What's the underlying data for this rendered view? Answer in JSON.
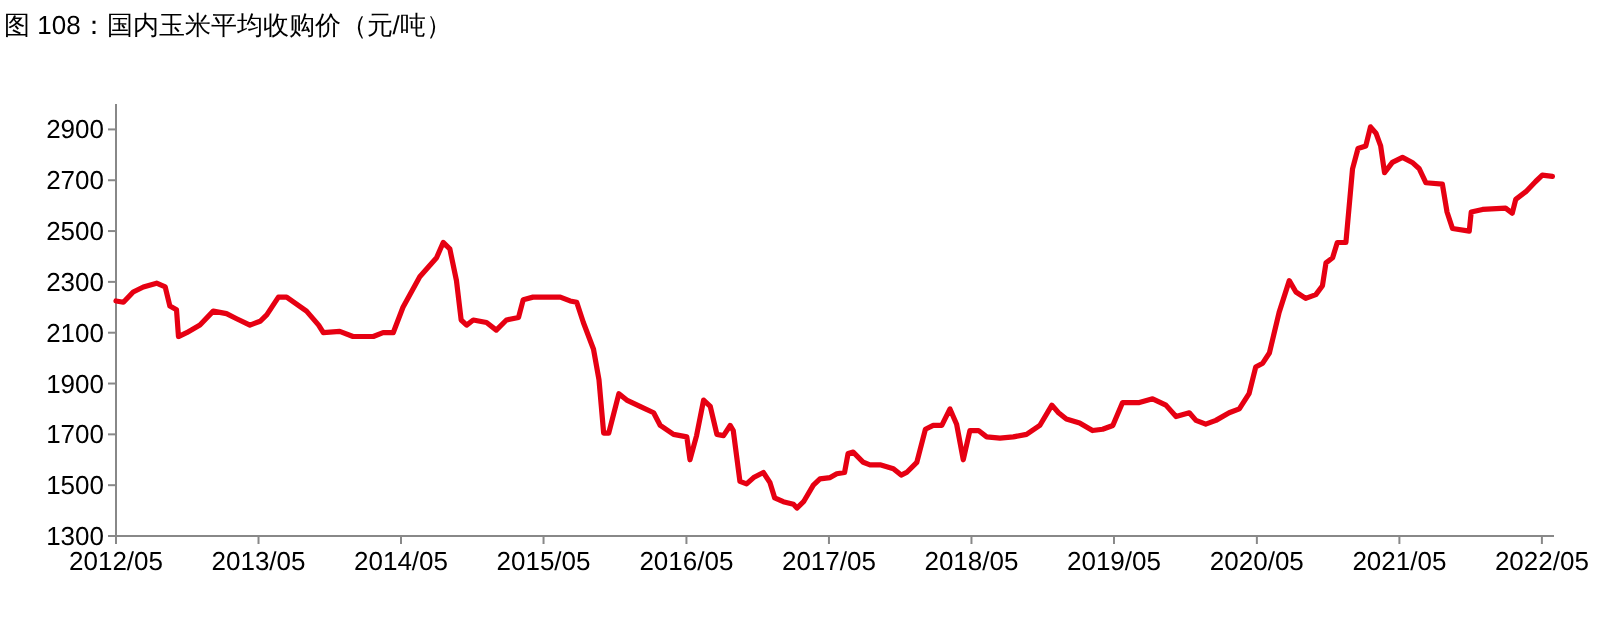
{
  "chart_data": {
    "type": "line",
    "title": "图 108：国内玉米平均收购价（元/吨）",
    "xlim": [
      "2012-05-01",
      "2022-06-01"
    ],
    "ylim": [
      1300,
      3000
    ],
    "xticks": [
      {
        "value": "2012-05-01",
        "label": "2012/05"
      },
      {
        "value": "2013-05-01",
        "label": "2013/05"
      },
      {
        "value": "2014-05-01",
        "label": "2014/05"
      },
      {
        "value": "2015-05-01",
        "label": "2015/05"
      },
      {
        "value": "2016-05-01",
        "label": "2016/05"
      },
      {
        "value": "2017-05-01",
        "label": "2017/05"
      },
      {
        "value": "2018-05-01",
        "label": "2018/05"
      },
      {
        "value": "2019-05-01",
        "label": "2019/05"
      },
      {
        "value": "2020-05-01",
        "label": "2020/05"
      },
      {
        "value": "2021-05-01",
        "label": "2021/05"
      },
      {
        "value": "2022-05-01",
        "label": "2022/05"
      }
    ],
    "yticks": [
      1300,
      1500,
      1700,
      1900,
      2100,
      2300,
      2500,
      2700,
      2900
    ],
    "grid": false,
    "marker": "none",
    "line_style": "solid",
    "series": [
      {
        "color": "#e60012",
        "x": [
          "2012-05-01",
          "2012-05-20",
          "2012-06-14",
          "2012-07-10",
          "2012-08-13",
          "2012-09-04",
          "2012-09-16",
          "2012-10-03",
          "2012-10-08",
          "2012-10-29",
          "2012-12-02",
          "2013-01-05",
          "2013-02-08",
          "2013-03-06",
          "2013-04-09",
          "2013-05-05",
          "2013-05-22",
          "2013-06-21",
          "2013-07-12",
          "2013-09-01",
          "2013-10-02",
          "2013-10-14",
          "2013-11-25",
          "2013-12-29",
          "2014-02-19",
          "2014-03-16",
          "2014-04-11",
          "2014-05-06",
          "2014-06-18",
          "2014-07-31",
          "2014-08-17",
          "2014-09-03",
          "2014-09-20",
          "2014-10-02",
          "2014-10-16",
          "2014-11-02",
          "2014-12-06",
          "2014-12-31",
          "2015-01-26",
          "2015-02-26",
          "2015-03-10",
          "2015-04-04",
          "2015-05-10",
          "2015-06-13",
          "2015-07-08",
          "2015-07-25",
          "2015-08-11",
          "2015-09-06",
          "2015-09-20",
          "2015-10-02",
          "2015-10-15",
          "2015-11-10",
          "2015-11-30",
          "2016-01-03",
          "2016-02-07",
          "2016-02-24",
          "2016-03-29",
          "2016-05-02",
          "2016-05-10",
          "2016-05-27",
          "2016-06-14",
          "2016-07-01",
          "2016-07-18",
          "2016-08-04",
          "2016-08-21",
          "2016-08-29",
          "2016-09-15",
          "2016-10-02",
          "2016-10-20",
          "2016-11-14",
          "2016-12-01",
          "2016-12-13",
          "2017-01-04",
          "2017-01-30",
          "2017-02-08",
          "2017-02-25",
          "2017-03-22",
          "2017-04-08",
          "2017-05-04",
          "2017-05-21",
          "2017-06-10",
          "2017-06-19",
          "2017-07-02",
          "2017-07-28",
          "2017-08-14",
          "2017-09-09",
          "2017-10-13",
          "2017-11-02",
          "2017-11-16",
          "2017-12-12",
          "2018-01-03",
          "2018-01-23",
          "2018-02-14",
          "2018-03-07",
          "2018-03-24",
          "2018-04-10",
          "2018-04-27",
          "2018-05-19",
          "2018-06-09",
          "2018-07-13",
          "2018-08-16",
          "2018-09-19",
          "2018-10-23",
          "2018-11-23",
          "2018-12-10",
          "2018-12-30",
          "2019-02-02",
          "2019-03-07",
          "2019-04-02",
          "2019-04-28",
          "2019-05-23",
          "2019-07-05",
          "2019-08-08",
          "2019-09-11",
          "2019-10-07",
          "2019-11-10",
          "2019-11-27",
          "2019-12-22",
          "2020-01-17",
          "2020-02-20",
          "2020-03-17",
          "2020-04-11",
          "2020-04-28",
          "2020-05-16",
          "2020-06-02",
          "2020-06-27",
          "2020-07-23",
          "2020-08-09",
          "2020-09-03",
          "2020-09-29",
          "2020-10-16",
          "2020-10-25",
          "2020-11-11",
          "2020-11-23",
          "2020-12-15",
          "2021-01-01",
          "2021-01-15",
          "2021-02-04",
          "2021-02-16",
          "2021-03-02",
          "2021-03-14",
          "2021-03-24",
          "2021-04-13",
          "2021-05-09",
          "2021-06-03",
          "2021-06-21",
          "2021-07-08",
          "2021-08-19",
          "2021-08-31",
          "2021-09-14",
          "2021-10-27",
          "2021-11-01",
          "2021-11-30",
          "2022-01-28",
          "2022-02-14",
          "2022-02-23",
          "2022-03-21",
          "2022-04-15",
          "2022-05-02",
          "2022-05-28"
        ],
        "values": [
          2225,
          2220,
          2260,
          2280,
          2295,
          2280,
          2205,
          2190,
          2085,
          2100,
          2130,
          2185,
          2175,
          2155,
          2130,
          2145,
          2170,
          2240,
          2240,
          2185,
          2130,
          2100,
          2105,
          2085,
          2085,
          2100,
          2100,
          2200,
          2320,
          2395,
          2455,
          2430,
          2305,
          2150,
          2130,
          2150,
          2140,
          2110,
          2150,
          2160,
          2230,
          2240,
          2240,
          2240,
          2225,
          2220,
          2140,
          2035,
          1915,
          1705,
          1705,
          1860,
          1835,
          1810,
          1785,
          1735,
          1700,
          1690,
          1600,
          1695,
          1835,
          1810,
          1700,
          1695,
          1735,
          1715,
          1515,
          1505,
          1530,
          1550,
          1510,
          1450,
          1435,
          1425,
          1410,
          1435,
          1500,
          1525,
          1530,
          1545,
          1550,
          1625,
          1630,
          1590,
          1580,
          1580,
          1565,
          1540,
          1550,
          1590,
          1720,
          1735,
          1735,
          1800,
          1740,
          1600,
          1715,
          1715,
          1690,
          1685,
          1690,
          1700,
          1735,
          1815,
          1785,
          1760,
          1745,
          1715,
          1720,
          1735,
          1825,
          1825,
          1840,
          1815,
          1770,
          1785,
          1755,
          1740,
          1755,
          1785,
          1800,
          1860,
          1965,
          1980,
          2020,
          2180,
          2305,
          2260,
          2235,
          2250,
          2285,
          2375,
          2395,
          2455,
          2455,
          2745,
          2825,
          2835,
          2910,
          2885,
          2835,
          2730,
          2770,
          2790,
          2770,
          2745,
          2690,
          2685,
          2575,
          2510,
          2500,
          2575,
          2585,
          2590,
          2570,
          2625,
          2655,
          2695,
          2720,
          2715
        ]
      }
    ]
  }
}
